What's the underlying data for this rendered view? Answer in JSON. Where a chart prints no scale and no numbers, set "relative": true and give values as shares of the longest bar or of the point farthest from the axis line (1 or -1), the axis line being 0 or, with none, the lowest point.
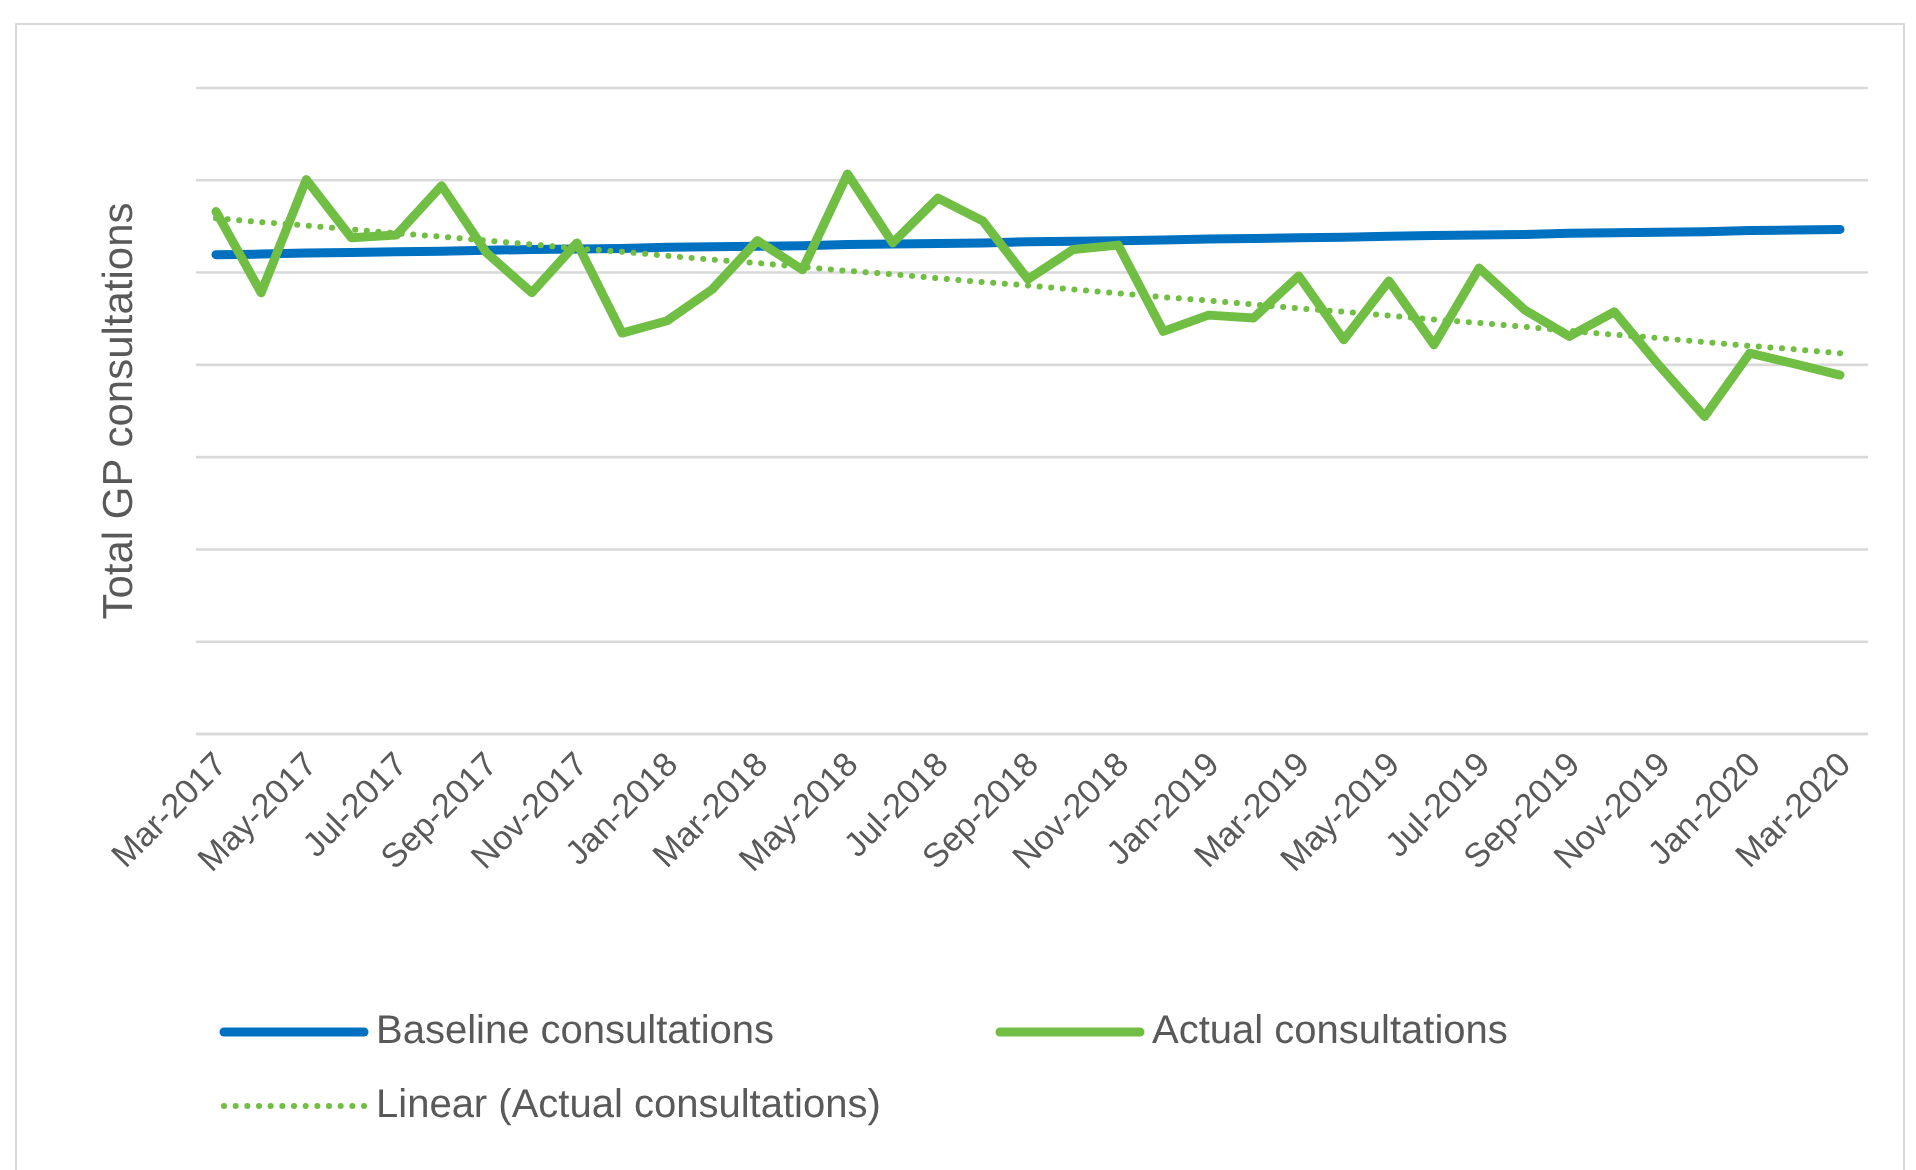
{
  "chart_data": {
    "type": "line",
    "relative": true,
    "ylabel": "Total GP consultations",
    "grid": "y",
    "legend": "bottom",
    "categories": [
      "Mar-2017",
      null,
      "May-2017",
      null,
      "Jul-2017",
      null,
      "Sep-2017",
      null,
      "Nov-2017",
      null,
      "Jan-2018",
      null,
      "Mar-2018",
      null,
      "May-2018",
      null,
      "Jul-2018",
      null,
      "Sep-2018",
      null,
      "Nov-2018",
      null,
      "Jan-2019",
      null,
      "Mar-2019",
      null,
      "May-2019",
      null,
      "Jul-2019",
      null,
      "Sep-2019",
      null,
      "Nov-2019",
      null,
      "Jan-2020",
      null,
      "Mar-2020"
    ],
    "series": [
      {
        "name": "Baseline consultations",
        "color": "#0070c0",
        "values": [
          0.856,
          0.857,
          0.859,
          0.86,
          0.861,
          0.862,
          0.864,
          0.865,
          0.866,
          0.867,
          0.869,
          0.87,
          0.871,
          0.872,
          0.874,
          0.875,
          0.876,
          0.877,
          0.879,
          0.88,
          0.881,
          0.882,
          0.884,
          0.885,
          0.886,
          0.887,
          0.889,
          0.89,
          0.891,
          0.892,
          0.894,
          0.895,
          0.896,
          0.897,
          0.899,
          0.9,
          0.901
        ]
      },
      {
        "name": "Actual consultations",
        "color": "#70bf44",
        "values": [
          0.933,
          0.788,
          0.99,
          0.886,
          0.891,
          0.979,
          0.859,
          0.788,
          0.877,
          0.716,
          0.738,
          0.794,
          0.881,
          0.829,
          1,
          0.877,
          0.957,
          0.916,
          0.812,
          0.865,
          0.873,
          0.719,
          0.748,
          0.743,
          0.818,
          0.704,
          0.809,
          0.695,
          0.832,
          0.758,
          0.71,
          0.754,
          0.657,
          0.567,
          0.68,
          0.661,
          0.641
        ]
      },
      {
        "name": "Linear (Actual consultations)",
        "type": "line",
        "line_style": "dotted",
        "color": "#70bf44",
        "values": [
          0.921,
          0.914,
          0.908,
          0.901,
          0.894,
          0.888,
          0.881,
          0.874,
          0.867,
          0.861,
          0.854,
          0.847,
          0.841,
          0.834,
          0.827,
          0.821,
          0.814,
          0.807,
          0.801,
          0.794,
          0.787,
          0.78,
          0.774,
          0.767,
          0.76,
          0.754,
          0.747,
          0.74,
          0.734,
          0.727,
          0.72,
          0.713,
          0.707,
          0.7,
          0.693,
          0.687,
          0.68
        ]
      }
    ]
  }
}
